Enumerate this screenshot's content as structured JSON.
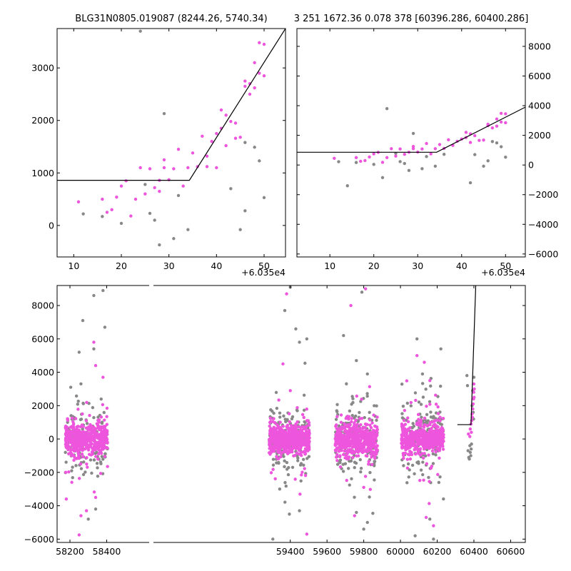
{
  "chart_data": [
    {
      "type": "scatter",
      "panel": "top-left",
      "title": "BLG31N0805.019087 (8244.26, 5740.34)",
      "x_offset_label": "+6.035e4",
      "xlim": [
        6.5,
        54.5
      ],
      "ylim": [
        -600,
        3750
      ],
      "xticks": [
        10,
        20,
        30,
        40,
        50
      ],
      "yticks": [
        0,
        1000,
        2000,
        3000
      ],
      "ytick_side": "left",
      "colors": {
        "highlight": "#ee55dd",
        "rejected": "#888888",
        "model": "#000000"
      },
      "model_line": [
        [
          6.5,
          860
        ],
        [
          34.3,
          860
        ],
        [
          54.5,
          3750
        ]
      ],
      "series": [
        {
          "role": "highlight",
          "points": [
            [
              11,
              450
            ],
            [
              16,
              500
            ],
            [
              17,
              250
            ],
            [
              18,
              300
            ],
            [
              19,
              540
            ],
            [
              20,
              750
            ],
            [
              21,
              850
            ],
            [
              22,
              180
            ],
            [
              23,
              500
            ],
            [
              24,
              1100
            ],
            [
              25,
              600
            ],
            [
              26,
              1080
            ],
            [
              27,
              720
            ],
            [
              28,
              860
            ],
            [
              28,
              650
            ],
            [
              29,
              1250
            ],
            [
              29,
              1100
            ],
            [
              30,
              870
            ],
            [
              31,
              1080
            ],
            [
              32,
              1450
            ],
            [
              33,
              750
            ],
            [
              34,
              1100
            ],
            [
              35,
              1380
            ],
            [
              36,
              1120
            ],
            [
              37,
              1700
            ],
            [
              38,
              1320
            ],
            [
              38,
              1120
            ],
            [
              39,
              1600
            ],
            [
              40,
              1750
            ],
            [
              40,
              1100
            ],
            [
              41,
              1850
            ],
            [
              41,
              2200
            ],
            [
              42,
              1520
            ],
            [
              42,
              2100
            ],
            [
              43,
              1980
            ],
            [
              44,
              1660
            ],
            [
              44,
              1950
            ],
            [
              45,
              1680
            ],
            [
              46,
              2750
            ],
            [
              46,
              2650
            ],
            [
              47,
              2500
            ],
            [
              47,
              2700
            ],
            [
              48,
              2620
            ],
            [
              48,
              3100
            ],
            [
              49,
              3480
            ],
            [
              49,
              2900
            ],
            [
              50,
              3450
            ],
            [
              50,
              2850
            ]
          ]
        },
        {
          "role": "rejected",
          "points": [
            [
              12,
              220
            ],
            [
              16,
              170
            ],
            [
              20,
              40
            ],
            [
              25,
              780
            ],
            [
              26,
              230
            ],
            [
              27,
              100
            ],
            [
              28,
              -370
            ],
            [
              29,
              2130
            ],
            [
              31,
              -250
            ],
            [
              32,
              570
            ],
            [
              34,
              -80
            ],
            [
              43,
              700
            ],
            [
              45,
              -80
            ],
            [
              46,
              280
            ],
            [
              46,
              1580
            ],
            [
              48,
              1490
            ],
            [
              49,
              1230
            ],
            [
              50,
              530
            ],
            [
              24,
              3700
            ]
          ]
        }
      ]
    },
    {
      "type": "scatter",
      "panel": "top-right",
      "title": "3 251 1672.36 0.078 378 [60396.286, 60400.286]",
      "x_offset_label": "+6.035e4",
      "xlim": [
        2.5,
        54.5
      ],
      "ylim": [
        -6200,
        9200
      ],
      "xticks": [
        10,
        20,
        30,
        40,
        50
      ],
      "yticks": [
        -6000,
        -4000,
        -2000,
        0,
        2000,
        4000,
        6000,
        8000
      ],
      "ytick_side": "right",
      "colors": {
        "highlight": "#ee55dd",
        "rejected": "#888888",
        "model": "#000000"
      },
      "model_line": [
        [
          2.5,
          860
        ],
        [
          34.3,
          860
        ],
        [
          54.5,
          3900
        ]
      ],
      "series": [
        {
          "role": "highlight",
          "points": [
            [
              11,
              450
            ],
            [
              16,
              500
            ],
            [
              17,
              250
            ],
            [
              18,
              300
            ],
            [
              19,
              540
            ],
            [
              20,
              750
            ],
            [
              21,
              850
            ],
            [
              22,
              180
            ],
            [
              23,
              500
            ],
            [
              24,
              1100
            ],
            [
              25,
              600
            ],
            [
              26,
              1080
            ],
            [
              27,
              720
            ],
            [
              28,
              860
            ],
            [
              29,
              1250
            ],
            [
              29,
              1100
            ],
            [
              30,
              870
            ],
            [
              31,
              1080
            ],
            [
              32,
              1450
            ],
            [
              33,
              750
            ],
            [
              34,
              1100
            ],
            [
              35,
              1380
            ],
            [
              36,
              1120
            ],
            [
              37,
              1700
            ],
            [
              38,
              1320
            ],
            [
              39,
              1600
            ],
            [
              40,
              1750
            ],
            [
              41,
              1850
            ],
            [
              41,
              2200
            ],
            [
              42,
              1520
            ],
            [
              42,
              2100
            ],
            [
              43,
              1980
            ],
            [
              44,
              1660
            ],
            [
              45,
              1680
            ],
            [
              46,
              2750
            ],
            [
              46,
              2650
            ],
            [
              47,
              2500
            ],
            [
              48,
              2620
            ],
            [
              48,
              3100
            ],
            [
              49,
              3480
            ],
            [
              49,
              2900
            ],
            [
              50,
              3450
            ],
            [
              50,
              2850
            ]
          ]
        },
        {
          "role": "rejected",
          "points": [
            [
              12,
              220
            ],
            [
              14,
              -1400
            ],
            [
              16,
              170
            ],
            [
              20,
              40
            ],
            [
              22,
              -850
            ],
            [
              23,
              3800
            ],
            [
              25,
              780
            ],
            [
              26,
              230
            ],
            [
              27,
              100
            ],
            [
              28,
              -370
            ],
            [
              29,
              2130
            ],
            [
              31,
              -250
            ],
            [
              32,
              570
            ],
            [
              34,
              -80
            ],
            [
              36,
              720
            ],
            [
              42,
              -1200
            ],
            [
              43,
              700
            ],
            [
              45,
              -80
            ],
            [
              46,
              280
            ],
            [
              47,
              1580
            ],
            [
              48,
              1490
            ],
            [
              49,
              1230
            ],
            [
              50,
              530
            ]
          ]
        }
      ]
    },
    {
      "type": "scatter",
      "panel": "bottom",
      "title": "",
      "xlim": [
        58130,
        60680
      ],
      "ylim": [
        -6200,
        9200
      ],
      "xticks": [
        58200,
        58400,
        59400,
        59600,
        59800,
        60000,
        60200,
        60400,
        60600
      ],
      "yticks": [
        -6000,
        -4000,
        -2000,
        0,
        2000,
        4000,
        6000,
        8000
      ],
      "ytick_side": "left",
      "axis_break": [
        [
          58420,
          58425
        ],
        [
          58425,
          59280
        ]
      ],
      "colors": {
        "highlight": "#ee55dd",
        "rejected": "#888888",
        "model": "#000000"
      },
      "model_line": [
        [
          60310,
          860
        ],
        [
          60384,
          860
        ],
        [
          60410,
          9200
        ]
      ],
      "seasons": [
        {
          "x_range": [
            58175,
            58405
          ],
          "core_sd": 450,
          "n_core": 520,
          "n_scatter": 140
        },
        {
          "x_range": [
            59285,
            59505
          ],
          "core_sd": 420,
          "n_core": 560,
          "n_scatter": 150
        },
        {
          "x_range": [
            59645,
            59875
          ],
          "core_sd": 500,
          "n_core": 500,
          "n_scatter": 150
        },
        {
          "x_range": [
            60005,
            60235
          ],
          "core_sd": 450,
          "n_core": 520,
          "n_scatter": 150
        }
      ],
      "outliers_highlight": [
        [
          58180,
          -3600
        ],
        [
          58250,
          -5750
        ],
        [
          58260,
          -4600
        ],
        [
          58290,
          -4300
        ],
        [
          58340,
          -3500
        ],
        [
          58330,
          5800
        ],
        [
          58340,
          4400
        ],
        [
          58380,
          3700
        ],
        [
          59380,
          8700
        ],
        [
          59360,
          4500
        ],
        [
          59400,
          2900
        ],
        [
          59490,
          -5700
        ],
        [
          59730,
          8000
        ],
        [
          59810,
          9000
        ],
        [
          59750,
          -4600
        ],
        [
          59800,
          -2900
        ],
        [
          60090,
          5000
        ],
        [
          60130,
          4600
        ],
        [
          60140,
          -4700
        ],
        [
          60180,
          -5200
        ],
        [
          60160,
          3500
        ]
      ],
      "outliers_rejected": [
        [
          58330,
          8600
        ],
        [
          58380,
          8900
        ],
        [
          58390,
          6700
        ],
        [
          58270,
          7100
        ],
        [
          58250,
          5200
        ],
        [
          58330,
          5400
        ],
        [
          58340,
          -4200
        ],
        [
          58300,
          -4800
        ],
        [
          59305,
          -6000
        ],
        [
          59370,
          7700
        ],
        [
          59400,
          9100
        ],
        [
          59430,
          6600
        ],
        [
          59450,
          5800
        ],
        [
          59490,
          6000
        ],
        [
          59395,
          -4500
        ],
        [
          59450,
          -4300
        ],
        [
          59690,
          6200
        ],
        [
          59790,
          8800
        ],
        [
          59760,
          4700
        ],
        [
          59820,
          3900
        ],
        [
          59760,
          -4400
        ],
        [
          59800,
          -5400
        ],
        [
          59820,
          -5000
        ],
        [
          60090,
          6000
        ],
        [
          60220,
          5400
        ],
        [
          60160,
          -4800
        ],
        [
          60180,
          -6000
        ],
        [
          60120,
          3900
        ],
        [
          60080,
          -5800
        ]
      ],
      "late_segment": {
        "x_range": [
          60360,
          60405
        ],
        "highlight": [
          [
            60370,
            300
          ],
          [
            60378,
            150
          ],
          [
            60380,
            600
          ],
          [
            60384,
            900
          ],
          [
            60386,
            400
          ],
          [
            60388,
            1100
          ],
          [
            60390,
            1500
          ],
          [
            60392,
            1300
          ],
          [
            60394,
            1800
          ],
          [
            60396,
            2100
          ],
          [
            60398,
            2400
          ],
          [
            60399,
            2800
          ],
          [
            60400,
            3300
          ],
          [
            60401,
            2500
          ],
          [
            60402,
            3000
          ]
        ],
        "rejected": [
          [
            60362,
            3800
          ],
          [
            60365,
            3200
          ],
          [
            60368,
            -700
          ],
          [
            60372,
            -1100
          ],
          [
            60375,
            -1200
          ],
          [
            60378,
            -400
          ],
          [
            60380,
            -800
          ],
          [
            60383,
            -1000
          ],
          [
            60385,
            -600
          ],
          [
            60387,
            -300
          ],
          [
            60390,
            2000
          ],
          [
            60393,
            2900
          ],
          [
            60396,
            1600
          ],
          [
            60398,
            1200
          ],
          [
            60400,
            3700
          ]
        ]
      },
      "xtick_labels": [
        "58200",
        "58400",
        "59400",
        "59600",
        "59800",
        "60000",
        "60200",
        "60400",
        "60600"
      ],
      "ytick_labels": [
        "−6000",
        "−4000",
        "−2000",
        "0",
        "2000",
        "4000",
        "6000",
        "8000"
      ]
    }
  ]
}
